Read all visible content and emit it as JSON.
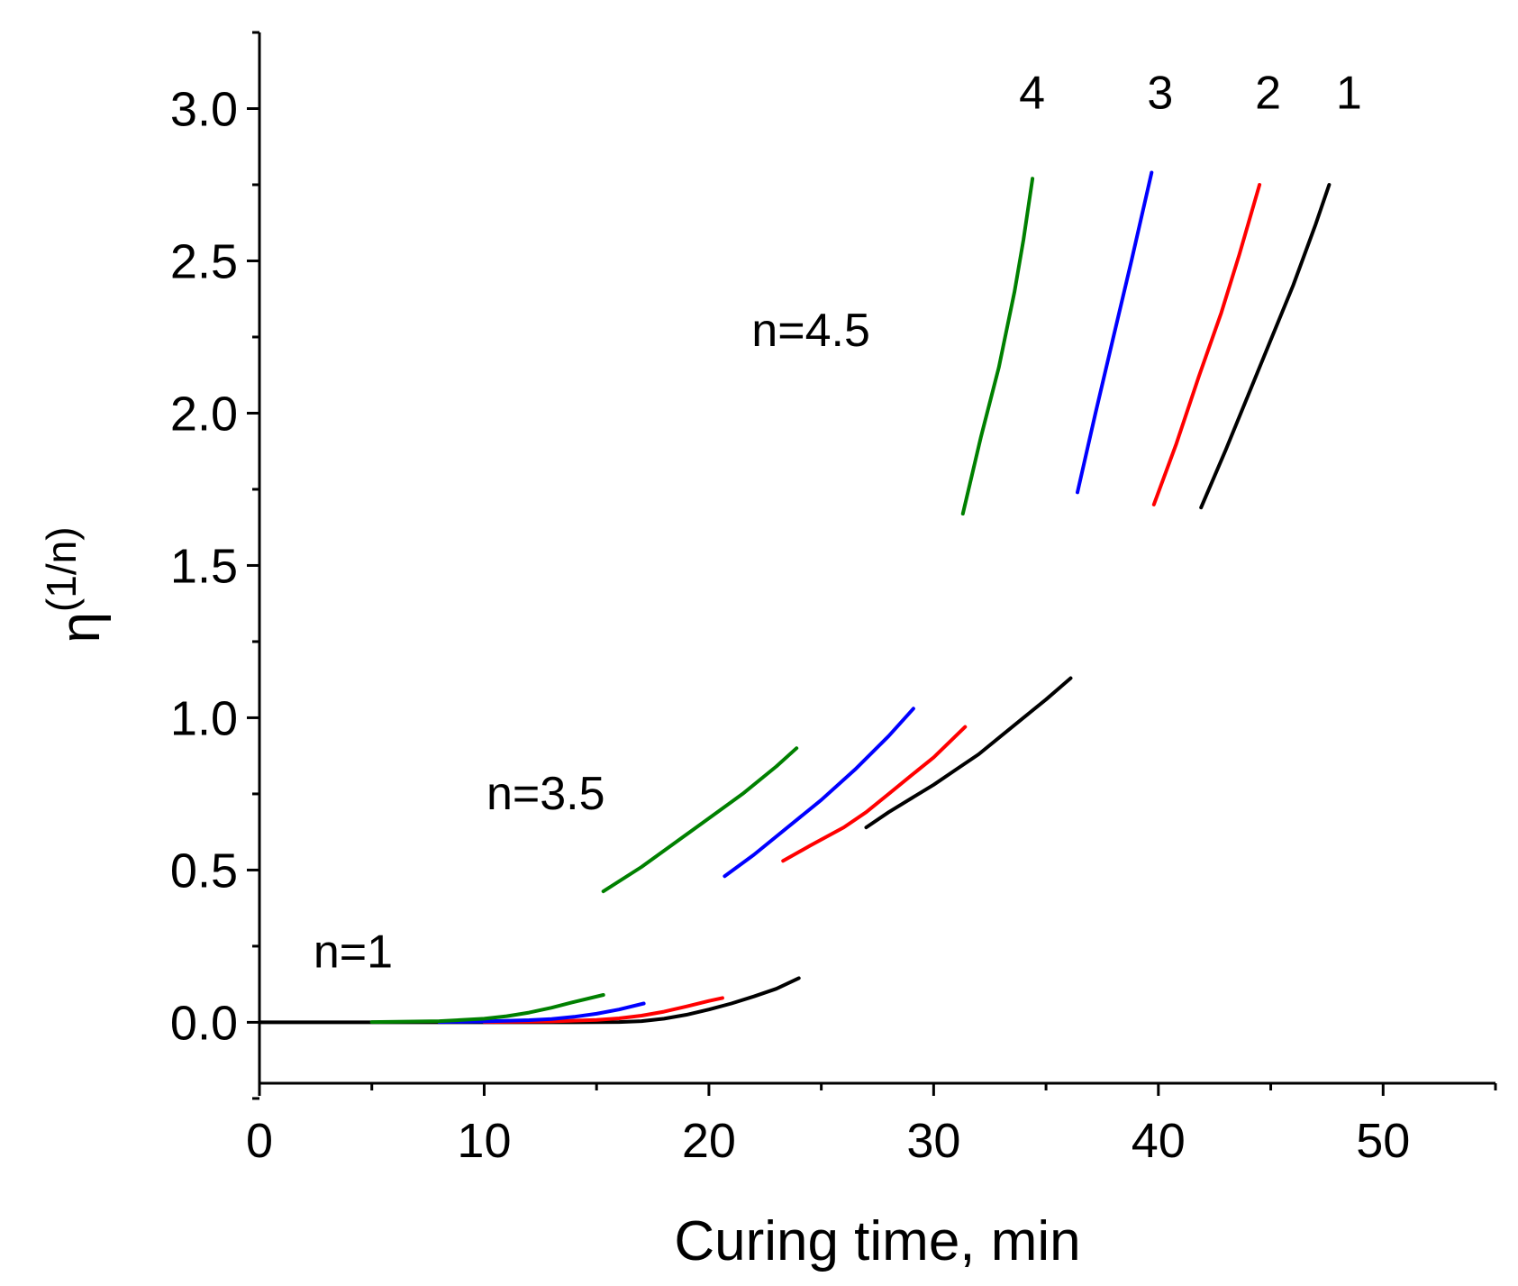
{
  "chart_data": {
    "type": "line",
    "title": "",
    "xlabel": "Curing time, min",
    "ylabel_base": "η",
    "ylabel_sup": "(1/n)",
    "xlim": [
      0,
      55
    ],
    "ylim": [
      -0.2,
      3.25
    ],
    "x_major_ticks": [
      0,
      10,
      20,
      30,
      40,
      50
    ],
    "x_minor_ticks": [
      5,
      15,
      25,
      35,
      45,
      55
    ],
    "x_tick_labels": [
      "0",
      "10",
      "20",
      "30",
      "40",
      "50"
    ],
    "y_major_ticks": [
      0.0,
      0.5,
      1.0,
      1.5,
      2.0,
      2.5,
      3.0
    ],
    "y_minor_ticks": [
      -0.25,
      0.25,
      0.75,
      1.25,
      1.75,
      2.25,
      2.75,
      3.25
    ],
    "y_tick_labels": [
      "0.0",
      "0.5",
      "1.0",
      "1.5",
      "2.0",
      "2.5",
      "3.0"
    ],
    "grid": false,
    "colors": {
      "series1": "#000000",
      "series2": "#ff0000",
      "series3": "#0000ff",
      "series4": "#008000"
    },
    "annotations": [
      {
        "text": "n=1",
        "x": 2.4,
        "y": 0.18
      },
      {
        "text": "n=3.5",
        "x": 10.1,
        "y": 0.7
      },
      {
        "text": "n=4.5",
        "x": 21.9,
        "y": 2.22
      },
      {
        "text": "4",
        "x": 33.8,
        "y": 3.0
      },
      {
        "text": "3",
        "x": 39.5,
        "y": 3.0
      },
      {
        "text": "2",
        "x": 44.3,
        "y": 3.0
      },
      {
        "text": "1",
        "x": 47.9,
        "y": 3.0
      }
    ],
    "series": [
      {
        "name": "1",
        "n": "1",
        "color": "#000000",
        "x": [
          0,
          5,
          10,
          14,
          16,
          17,
          18,
          19,
          20,
          21,
          22,
          23,
          24.0
        ],
        "y": [
          0,
          0,
          0,
          0,
          0.001,
          0.004,
          0.012,
          0.025,
          0.042,
          0.062,
          0.085,
          0.11,
          0.145
        ]
      },
      {
        "name": "2",
        "n": "1",
        "color": "#ff0000",
        "x": [
          10,
          13,
          15,
          16,
          17,
          18,
          19,
          20,
          20.6
        ],
        "y": [
          0.001,
          0.003,
          0.008,
          0.013,
          0.022,
          0.035,
          0.052,
          0.07,
          0.08
        ]
      },
      {
        "name": "3",
        "n": "1",
        "color": "#0000ff",
        "x": [
          8,
          10,
          12,
          13,
          14,
          15,
          16,
          17.1
        ],
        "y": [
          0.001,
          0.003,
          0.007,
          0.011,
          0.018,
          0.028,
          0.042,
          0.062
        ]
      },
      {
        "name": "4",
        "n": "1",
        "color": "#008000",
        "x": [
          5,
          8,
          10,
          11,
          12,
          13,
          14,
          15.3
        ],
        "y": [
          0.001,
          0.004,
          0.012,
          0.02,
          0.032,
          0.048,
          0.067,
          0.09
        ]
      },
      {
        "name": "1",
        "n": "3.5",
        "color": "#000000",
        "x": [
          27.0,
          28,
          29,
          30,
          31,
          32,
          33,
          34,
          35,
          36.1
        ],
        "y": [
          0.64,
          0.69,
          0.735,
          0.78,
          0.83,
          0.88,
          0.94,
          1.0,
          1.06,
          1.13
        ]
      },
      {
        "name": "2",
        "n": "3.5",
        "color": "#ff0000",
        "x": [
          23.3,
          24.5,
          26,
          27,
          28,
          29,
          30,
          31.4
        ],
        "y": [
          0.53,
          0.58,
          0.64,
          0.69,
          0.75,
          0.81,
          0.87,
          0.97
        ]
      },
      {
        "name": "3",
        "n": "3.5",
        "color": "#0000ff",
        "x": [
          20.7,
          22,
          23.5,
          25,
          26.5,
          28,
          29.1
        ],
        "y": [
          0.48,
          0.55,
          0.64,
          0.73,
          0.83,
          0.94,
          1.03
        ]
      },
      {
        "name": "4",
        "n": "3.5",
        "color": "#008000",
        "x": [
          15.3,
          17,
          18.5,
          20,
          21.5,
          23,
          23.9
        ],
        "y": [
          0.43,
          0.51,
          0.59,
          0.67,
          0.75,
          0.84,
          0.9
        ]
      },
      {
        "name": "1",
        "n": "4.5",
        "color": "#000000",
        "x": [
          41.9,
          43,
          44,
          45,
          46,
          47,
          47.6
        ],
        "y": [
          1.69,
          1.88,
          2.06,
          2.24,
          2.42,
          2.62,
          2.75
        ]
      },
      {
        "name": "2",
        "n": "4.5",
        "color": "#ff0000",
        "x": [
          39.8,
          40.8,
          41.8,
          42.8,
          43.6,
          44.5
        ],
        "y": [
          1.7,
          1.9,
          2.12,
          2.33,
          2.52,
          2.75
        ]
      },
      {
        "name": "3",
        "n": "4.5",
        "color": "#0000ff",
        "x": [
          36.4,
          37.2,
          38,
          38.8,
          39.7
        ],
        "y": [
          1.74,
          2.0,
          2.25,
          2.5,
          2.79
        ]
      },
      {
        "name": "4",
        "n": "4.5",
        "color": "#008000",
        "x": [
          31.3,
          32.1,
          32.9,
          33.6,
          34.0,
          34.4
        ],
        "y": [
          1.67,
          1.92,
          2.15,
          2.4,
          2.57,
          2.77
        ]
      }
    ]
  }
}
